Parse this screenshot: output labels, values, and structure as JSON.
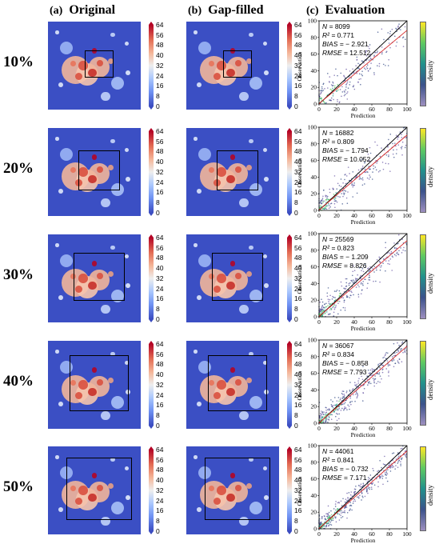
{
  "headers": [
    {
      "tag": "(a)",
      "title": "Original"
    },
    {
      "tag": "(b)",
      "title": "Gap-filled"
    },
    {
      "tag": "(c)",
      "title": "Evaluation"
    }
  ],
  "colorbar_ticks": [
    "64",
    "56",
    "48",
    "40",
    "32",
    "24",
    "16",
    "8",
    "0"
  ],
  "axis": {
    "xlabel": "Prediction",
    "ylabel": "Observation",
    "ticks": [
      "0",
      "20",
      "40",
      "60",
      "80",
      "100"
    ],
    "density_label": "density"
  },
  "colors": {
    "map_background": "#3b4fc4",
    "one_to_one_line": "#000000",
    "fit_line": "#d62728"
  },
  "chart_data": [
    {
      "type": "scatter",
      "row_label": "10%",
      "box_fraction": 0.1,
      "N": "8099",
      "R2": "0.771",
      "BIAS": "− 2.921",
      "RMSE": "12.512",
      "slope": 0.88,
      "intercept": 0.5,
      "xlim": [
        0,
        100
      ],
      "ylim": [
        0,
        100
      ]
    },
    {
      "type": "scatter",
      "row_label": "20%",
      "box_fraction": 0.2,
      "N": "16882",
      "R2": "0.809",
      "BIAS": "− 1.794",
      "RMSE": "10.052",
      "slope": 0.9,
      "intercept": 0.5,
      "xlim": [
        0,
        100
      ],
      "ylim": [
        0,
        100
      ]
    },
    {
      "type": "scatter",
      "row_label": "30%",
      "box_fraction": 0.3,
      "N": "25569",
      "R2": "0.823",
      "BIAS": "− 1.209",
      "RMSE": "8.826",
      "slope": 0.91,
      "intercept": 0.5,
      "xlim": [
        0,
        100
      ],
      "ylim": [
        0,
        100
      ]
    },
    {
      "type": "scatter",
      "row_label": "40%",
      "box_fraction": 0.4,
      "N": "36067",
      "R2": "0.834",
      "BIAS": "− 0.858",
      "RMSE": "7.793",
      "slope": 0.92,
      "intercept": 0.5,
      "xlim": [
        0,
        100
      ],
      "ylim": [
        0,
        100
      ]
    },
    {
      "type": "scatter",
      "row_label": "50%",
      "box_fraction": 0.5,
      "N": "44061",
      "R2": "0.841",
      "BIAS": "− 0.732",
      "RMSE": "7.171",
      "slope": 0.93,
      "intercept": 0.5,
      "xlim": [
        0,
        100
      ],
      "ylim": [
        0,
        100
      ]
    }
  ]
}
